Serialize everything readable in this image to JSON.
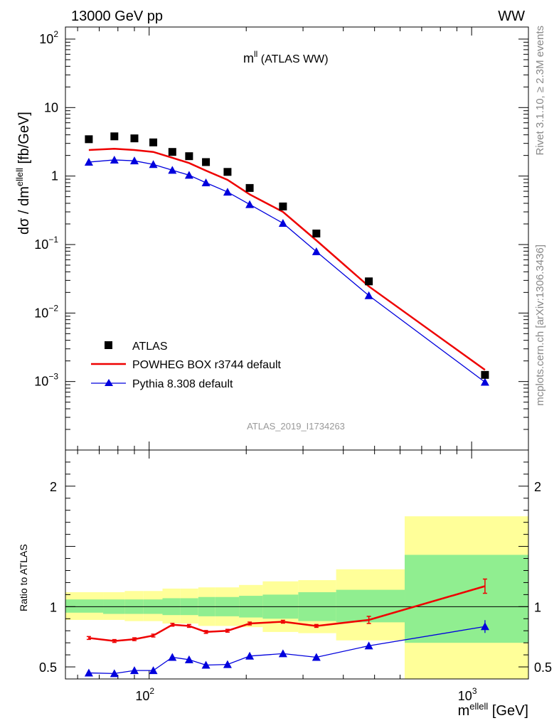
{
  "header": {
    "left": "13000 GeV pp",
    "right": "WW"
  },
  "side": {
    "rivet": "Rivet 3.1.10, ≥ 2.3M events",
    "mcplots": "mcplots.cern.ch [arXiv:1306.3436]"
  },
  "plot_title": {
    "base": "m",
    "sup": "ll",
    "rest": " (ATLAS WW)"
  },
  "analysis_id": "ATLAS_2019_I1734263",
  "legend": {
    "data": "ATLAS",
    "powheg": "POWHEG BOX r3744 default",
    "pythia": "Pythia 8.308 default"
  },
  "axes": {
    "main_ylabel": {
      "a": "dσ / dm",
      "sup": "ellell",
      "b": " [fb/GeV]"
    },
    "ratio_ylabel": "Ratio to ATLAS",
    "xlabel": {
      "a": "m",
      "sup": "ellell",
      "b": " [GeV]"
    },
    "x_ticks": [
      {
        "base": "10",
        "exp": "2",
        "value": 100
      },
      {
        "base": "10",
        "exp": "3",
        "value": 1000
      }
    ],
    "y_ticks": [
      {
        "base": "10",
        "exp": "2",
        "value": 100
      },
      {
        "base": "10",
        "exp": "",
        "value": 10
      },
      {
        "base": "1",
        "exp": "",
        "value": 1
      },
      {
        "base": "10",
        "exp": "−1",
        "value": 0.1
      },
      {
        "base": "10",
        "exp": "−2",
        "value": 0.01
      },
      {
        "base": "10",
        "exp": "−3",
        "value": 0.001
      }
    ],
    "ratio_ticks": [
      {
        "label": "0.5",
        "value": 0.5
      },
      {
        "label": "1",
        "value": 1
      },
      {
        "label": "2",
        "value": 2
      }
    ]
  },
  "chart_data": {
    "type": "scatter",
    "x_scale": "log",
    "y_scale": "log",
    "xlim": [
      55,
      1500
    ],
    "ylim": [
      0.0001,
      150
    ],
    "ratio_ylim": [
      0.4,
      2.3
    ],
    "colors": {
      "data": "#000000",
      "powheg": "#ee0000",
      "pythia": "#0000dd",
      "band_inner": "#90ee90",
      "band_outer": "#ffff99"
    },
    "x": [
      65,
      78,
      90,
      103,
      118,
      133,
      150,
      175,
      205,
      260,
      330,
      480,
      1100
    ],
    "bins": [
      [
        55,
        72
      ],
      [
        72,
        84
      ],
      [
        84,
        96
      ],
      [
        96,
        110
      ],
      [
        110,
        125
      ],
      [
        125,
        142
      ],
      [
        142,
        160
      ],
      [
        160,
        190
      ],
      [
        190,
        225
      ],
      [
        225,
        290
      ],
      [
        290,
        380
      ],
      [
        380,
        620
      ],
      [
        620,
        1500
      ]
    ],
    "series": [
      {
        "name": "ATLAS",
        "values": [
          3.45,
          3.8,
          3.55,
          3.1,
          2.25,
          1.95,
          1.6,
          1.15,
          0.67,
          0.36,
          0.145,
          0.029,
          0.00125
        ]
      },
      {
        "name": "POWHEG BOX r3744 default",
        "values": [
          2.4,
          2.5,
          2.4,
          2.25,
          1.85,
          1.55,
          1.2,
          0.88,
          0.54,
          0.3,
          0.115,
          0.0245,
          0.00148
        ]
      },
      {
        "name": "Pythia 8.308 default",
        "values": [
          1.6,
          1.72,
          1.67,
          1.48,
          1.22,
          1.03,
          0.8,
          0.585,
          0.385,
          0.205,
          0.079,
          0.018,
          0.00098
        ]
      }
    ],
    "ratio": {
      "powheg": [
        0.74,
        0.715,
        0.73,
        0.76,
        0.85,
        0.84,
        0.79,
        0.8,
        0.86,
        0.875,
        0.84,
        0.89,
        1.17
      ],
      "pythia": [
        0.45,
        0.445,
        0.47,
        0.47,
        0.58,
        0.56,
        0.515,
        0.52,
        0.59,
        0.61,
        0.58,
        0.675,
        0.835
      ],
      "band_inner": [
        [
          0.95,
          1.06
        ],
        [
          0.94,
          1.06
        ],
        [
          0.94,
          1.06
        ],
        [
          0.94,
          1.06
        ],
        [
          0.93,
          1.07
        ],
        [
          0.93,
          1.07
        ],
        [
          0.92,
          1.08
        ],
        [
          0.92,
          1.08
        ],
        [
          0.91,
          1.09
        ],
        [
          0.9,
          1.1
        ],
        [
          0.88,
          1.12
        ],
        [
          0.87,
          1.14
        ],
        [
          0.7,
          1.43
        ]
      ],
      "band_outer": [
        [
          0.89,
          1.12
        ],
        [
          0.89,
          1.12
        ],
        [
          0.88,
          1.13
        ],
        [
          0.88,
          1.13
        ],
        [
          0.86,
          1.15
        ],
        [
          0.86,
          1.15
        ],
        [
          0.84,
          1.16
        ],
        [
          0.84,
          1.16
        ],
        [
          0.83,
          1.18
        ],
        [
          0.79,
          1.21
        ],
        [
          0.78,
          1.22
        ],
        [
          0.72,
          1.31
        ],
        [
          0.4,
          1.75
        ]
      ]
    }
  }
}
